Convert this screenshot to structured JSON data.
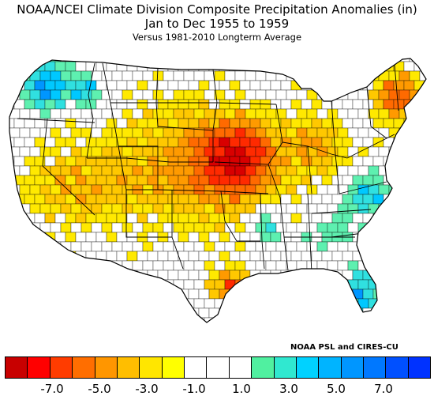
{
  "title": {
    "line1": "NOAA/NCEI Climate Division Composite Precipitation Anomalies (in)",
    "line2": "Jan to Dec 1955 to 1959",
    "line3": "Versus 1981-2010 Longterm Average"
  },
  "credit": "NOAA PSL and CIRES-CU",
  "map": {
    "region": "Contiguous United States",
    "variable": "Precipitation anomaly (in)",
    "colors": {
      "outside": "#ffffff",
      "border": "#000000",
      "no_change": "#ffffff",
      "dry_strong": "#d20000",
      "dry": "#ff6400",
      "dry_weak": "#ffd700",
      "wet_weak": "#50f0a0",
      "wet": "#00c8ff",
      "wet_strong": "#0050ff"
    }
  },
  "colorbar": {
    "colors": [
      "#c80000",
      "#ff0000",
      "#ff3c00",
      "#ff6e00",
      "#ff9600",
      "#ffbe00",
      "#ffe600",
      "#ffff00",
      "#ffffff",
      "#ffffff",
      "#ffffff",
      "#50f0a0",
      "#30e8d0",
      "#00d2ff",
      "#00b4ff",
      "#0096ff",
      "#0078ff",
      "#0050ff",
      "#0032ff"
    ],
    "tick_labels": [
      "-7.0",
      "-5.0",
      "-3.0",
      "-1.0",
      "1.0",
      "3.0",
      "5.0",
      "7.0"
    ],
    "tick_values": [
      -7,
      -5,
      -3,
      -1,
      1,
      3,
      5,
      7
    ],
    "range": [
      -9,
      9
    ]
  }
}
